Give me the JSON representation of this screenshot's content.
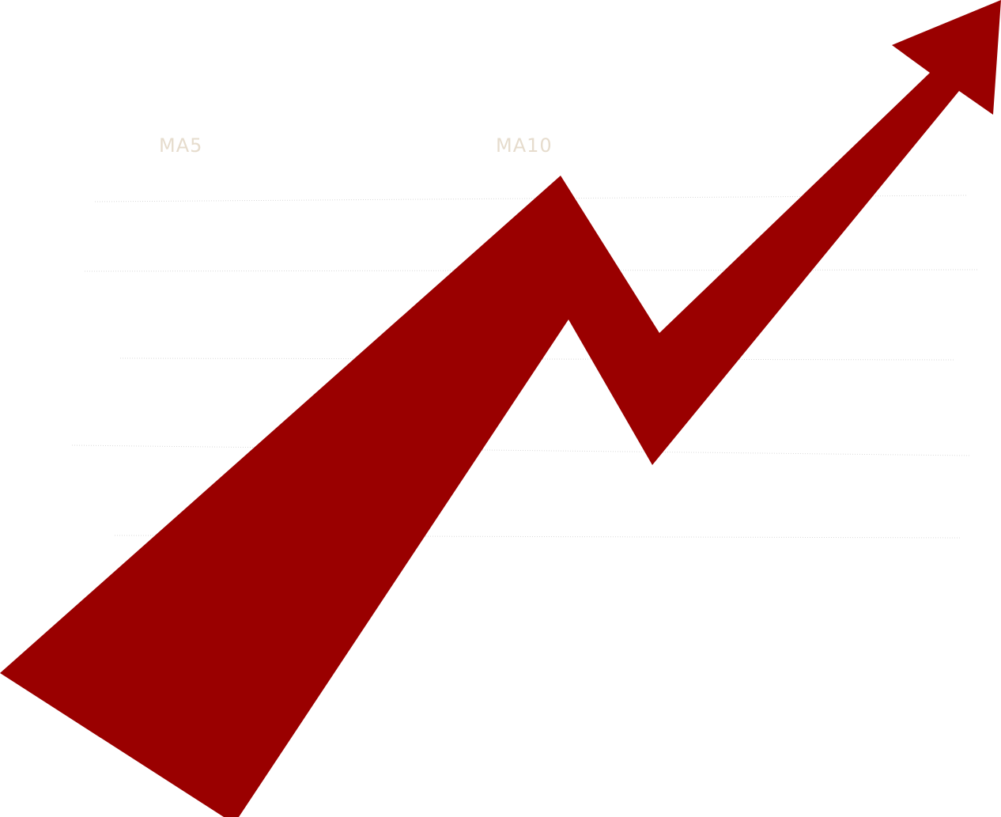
{
  "labels": {
    "ma5": "MA5",
    "ma10": "MA10"
  },
  "colors": {
    "background": "#ffffff",
    "arrow": "#9a0000",
    "gridline": "#d9d9d9",
    "label": "#e6dccd"
  },
  "icons": {
    "arrow": "trend-up-arrow-icon"
  }
}
